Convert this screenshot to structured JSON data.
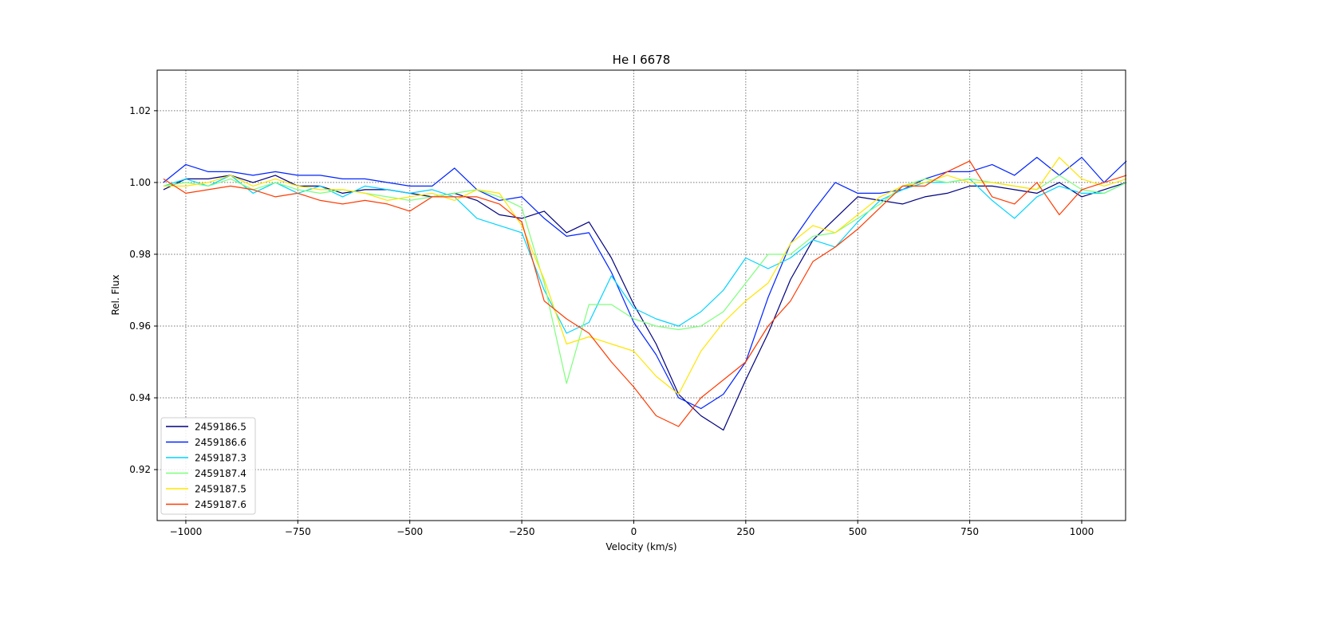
{
  "chart_data": {
    "type": "line",
    "title": "He I 6678",
    "xlabel": "Velocity (km/s)",
    "ylabel": "Rel. Flux",
    "xlim": [
      -1064,
      1098
    ],
    "ylim": [
      0.9058,
      1.0313
    ],
    "xticks": [
      -1000,
      -750,
      -500,
      -250,
      0,
      250,
      500,
      750,
      1000
    ],
    "xtick_labels": [
      "−1000",
      "−750",
      "−500",
      "−250",
      "0",
      "250",
      "500",
      "750",
      "1000"
    ],
    "yticks": [
      0.92,
      0.94,
      0.96,
      0.98,
      1.0,
      1.02
    ],
    "ytick_labels": [
      "0.92",
      "0.94",
      "0.96",
      "0.98",
      "1.00",
      "1.02"
    ],
    "grid": true,
    "legend_position": "lower-left",
    "x": [
      -1050,
      -1000,
      -950,
      -900,
      -850,
      -800,
      -750,
      -700,
      -650,
      -600,
      -550,
      -500,
      -450,
      -400,
      -350,
      -300,
      -250,
      -200,
      -150,
      -100,
      -50,
      0,
      50,
      100,
      150,
      200,
      250,
      300,
      350,
      400,
      450,
      500,
      550,
      600,
      650,
      700,
      750,
      800,
      850,
      900,
      950,
      1000,
      1050,
      1100
    ],
    "series": [
      {
        "name": "2459186.5",
        "color": "#00007f",
        "values": [
          0.998,
          1.001,
          1.001,
          1.002,
          1.0,
          1.002,
          0.999,
          0.999,
          0.997,
          0.998,
          0.998,
          0.997,
          0.996,
          0.997,
          0.995,
          0.991,
          0.99,
          0.992,
          0.986,
          0.989,
          0.979,
          0.966,
          0.955,
          0.941,
          0.935,
          0.931,
          0.945,
          0.958,
          0.973,
          0.984,
          0.99,
          0.996,
          0.995,
          0.994,
          0.996,
          0.997,
          0.999,
          0.999,
          0.998,
          0.997,
          1.0,
          0.996,
          0.998,
          1.0
        ]
      },
      {
        "name": "2459186.6",
        "color": "#0024ff",
        "values": [
          1.0,
          1.005,
          1.003,
          1.003,
          1.002,
          1.003,
          1.002,
          1.002,
          1.001,
          1.001,
          1.0,
          0.999,
          0.999,
          1.004,
          0.998,
          0.995,
          0.996,
          0.99,
          0.985,
          0.986,
          0.975,
          0.961,
          0.952,
          0.94,
          0.937,
          0.941,
          0.95,
          0.968,
          0.983,
          0.992,
          1.0,
          0.997,
          0.997,
          0.998,
          1.001,
          1.003,
          1.003,
          1.005,
          1.002,
          1.007,
          1.002,
          1.007,
          1.0,
          1.006
        ]
      },
      {
        "name": "2459187.3",
        "color": "#00d4ff",
        "values": [
          0.999,
          1.001,
          0.999,
          1.002,
          0.997,
          1.0,
          0.997,
          0.999,
          0.996,
          0.999,
          0.998,
          0.997,
          0.998,
          0.996,
          0.99,
          0.988,
          0.986,
          0.97,
          0.958,
          0.961,
          0.974,
          0.965,
          0.962,
          0.96,
          0.964,
          0.97,
          0.979,
          0.976,
          0.979,
          0.984,
          0.982,
          0.989,
          0.995,
          0.998,
          1.0,
          1.0,
          1.001,
          0.995,
          0.99,
          0.996,
          0.999,
          0.997,
          0.997,
          1.0
        ]
      },
      {
        "name": "2459187.4",
        "color": "#7dff7a",
        "values": [
          0.999,
          1.0,
          0.999,
          1.001,
          0.998,
          1.0,
          0.998,
          0.997,
          0.998,
          0.997,
          0.996,
          0.995,
          0.996,
          0.997,
          0.998,
          0.996,
          0.993,
          0.972,
          0.944,
          0.966,
          0.966,
          0.962,
          0.96,
          0.959,
          0.96,
          0.964,
          0.972,
          0.98,
          0.98,
          0.985,
          0.986,
          0.99,
          0.994,
          0.999,
          1.001,
          1.0,
          1.001,
          1.0,
          0.999,
          0.998,
          1.002,
          0.998,
          0.997,
          1.0
        ]
      },
      {
        "name": "2459187.5",
        "color": "#ffe500",
        "values": [
          0.999,
          0.999,
          1.0,
          1.002,
          0.999,
          1.001,
          0.999,
          0.998,
          0.998,
          0.997,
          0.995,
          0.996,
          0.997,
          0.995,
          0.998,
          0.997,
          0.988,
          0.973,
          0.955,
          0.957,
          0.955,
          0.953,
          0.946,
          0.941,
          0.953,
          0.961,
          0.967,
          0.972,
          0.983,
          0.988,
          0.986,
          0.991,
          0.996,
          0.999,
          1.0,
          1.002,
          1.0,
          1.0,
          0.999,
          0.998,
          1.007,
          1.001,
          0.999,
          1.001
        ]
      },
      {
        "name": "2459187.6",
        "color": "#ff3a00",
        "values": [
          1.001,
          0.997,
          0.998,
          0.999,
          0.998,
          0.996,
          0.997,
          0.995,
          0.994,
          0.995,
          0.994,
          0.992,
          0.996,
          0.996,
          0.996,
          0.994,
          0.989,
          0.967,
          0.962,
          0.958,
          0.95,
          0.943,
          0.935,
          0.932,
          0.94,
          0.945,
          0.95,
          0.96,
          0.967,
          0.978,
          0.982,
          0.987,
          0.993,
          0.999,
          0.999,
          1.003,
          1.006,
          0.996,
          0.994,
          1.0,
          0.991,
          0.998,
          1.0,
          1.002
        ]
      }
    ]
  }
}
